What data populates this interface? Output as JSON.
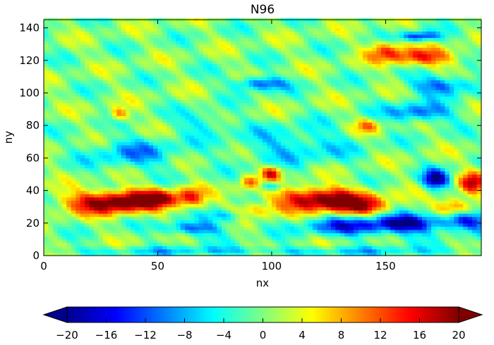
{
  "chart_data": {
    "type": "heatmap",
    "title": "N96",
    "xlabel": "nx",
    "ylabel": "ny",
    "xlim": [
      0,
      192
    ],
    "ylim": [
      0,
      145
    ],
    "x_ticks": [
      0,
      50,
      100,
      150
    ],
    "y_ticks": [
      0,
      20,
      40,
      60,
      80,
      100,
      120,
      140
    ],
    "colorbar": {
      "ticks": [
        -20,
        -16,
        -12,
        -8,
        -4,
        0,
        4,
        8,
        12,
        16,
        20
      ],
      "vmin": -20,
      "vmax": 20,
      "extend": "both",
      "colormap": "jet",
      "placement": "bottom"
    },
    "grid_nx": 192,
    "grid_ny": 145,
    "features": [
      {
        "nx": 30,
        "ny": 33,
        "value": 22,
        "sx": 14,
        "sy": 5
      },
      {
        "nx": 50,
        "ny": 36,
        "value": 14,
        "sx": 8,
        "sy": 4
      },
      {
        "nx": 65,
        "ny": 36,
        "value": 11,
        "sx": 4,
        "sy": 5
      },
      {
        "nx": 100,
        "ny": 51,
        "value": 16,
        "sx": 3,
        "sy": 3
      },
      {
        "nx": 90,
        "ny": 45,
        "value": 10,
        "sx": 3,
        "sy": 3
      },
      {
        "nx": 122,
        "ny": 35,
        "value": 22,
        "sx": 14,
        "sy": 5
      },
      {
        "nx": 140,
        "ny": 30,
        "value": 12,
        "sx": 9,
        "sy": 4
      },
      {
        "nx": 188,
        "ny": 45,
        "value": 15,
        "sx": 4,
        "sy": 5
      },
      {
        "nx": 180,
        "ny": 30,
        "value": 13,
        "sx": 6,
        "sy": 4
      },
      {
        "nx": 165,
        "ny": 122,
        "value": 13,
        "sx": 12,
        "sy": 4
      },
      {
        "nx": 150,
        "ny": 127,
        "value": 10,
        "sx": 5,
        "sy": 4
      },
      {
        "nx": 33,
        "ny": 87,
        "value": 11,
        "sx": 3,
        "sy": 3
      },
      {
        "nx": 142,
        "ny": 80,
        "value": 9,
        "sx": 4,
        "sy": 3
      },
      {
        "nx": 90,
        "ny": 28,
        "value": 8,
        "sx": 8,
        "sy": 3
      },
      {
        "nx": 40,
        "ny": 63,
        "value": -8,
        "sx": 14,
        "sy": 7
      },
      {
        "nx": 80,
        "ny": 25,
        "value": -10,
        "sx": 6,
        "sy": 3
      },
      {
        "nx": 65,
        "ny": 17,
        "value": -12,
        "sx": 10,
        "sy": 3
      },
      {
        "nx": 135,
        "ny": 18,
        "value": -14,
        "sx": 14,
        "sy": 4
      },
      {
        "nx": 160,
        "ny": 20,
        "value": -18,
        "sx": 10,
        "sy": 4
      },
      {
        "nx": 185,
        "ny": 22,
        "value": -15,
        "sx": 8,
        "sy": 4
      },
      {
        "nx": 172,
        "ny": 47,
        "value": -20,
        "sx": 4,
        "sy": 4
      },
      {
        "nx": 165,
        "ny": 88,
        "value": -12,
        "sx": 10,
        "sy": 4
      },
      {
        "nx": 175,
        "ny": 105,
        "value": -12,
        "sx": 10,
        "sy": 4
      },
      {
        "nx": 95,
        "ny": 106,
        "value": -13,
        "sx": 8,
        "sy": 3
      },
      {
        "nx": 165,
        "ny": 135,
        "value": -14,
        "sx": 6,
        "sy": 2
      },
      {
        "nx": 110,
        "ny": 68,
        "value": -7,
        "sx": 18,
        "sy": 8
      },
      {
        "nx": 100,
        "ny": 43,
        "value": -10,
        "sx": 4,
        "sy": 2
      },
      {
        "nx": 70,
        "ny": 82,
        "value": -6,
        "sx": 8,
        "sy": 5
      },
      {
        "nx": 96,
        "ny": 3,
        "value": -6,
        "sx": 90,
        "sy": 2
      }
    ]
  }
}
